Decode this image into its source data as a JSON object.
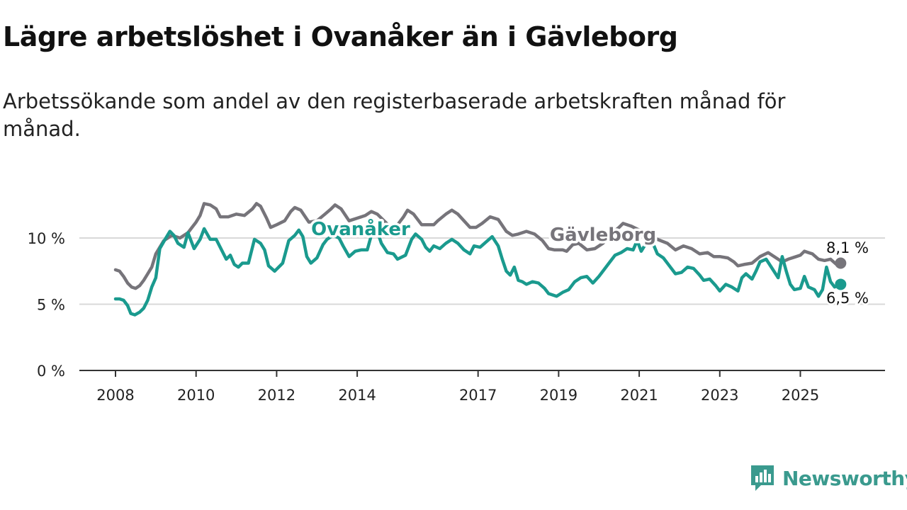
{
  "header": {
    "title": "Lägre arbetslöshet i Ovanåker än i Gävleborg",
    "subtitle": "Arbetssökande som andel av den registerbaserade arbetskraften månad för månad."
  },
  "brand": {
    "name": "Newsworthy",
    "icon": "newsworthy-logo-icon",
    "color": "#3a9a8e"
  },
  "chart_data": {
    "type": "line",
    "title": "Lägre arbetslöshet i Ovanåker än i Gävleborg",
    "xlabel": "",
    "ylabel": "",
    "xlim": [
      2008.0,
      2026.17
    ],
    "ylim": [
      0,
      12.5
    ],
    "grid": true,
    "x_ticks": [
      {
        "value": 2008,
        "label": "2008"
      },
      {
        "value": 2010,
        "label": "2010"
      },
      {
        "value": 2012,
        "label": "2012"
      },
      {
        "value": 2014,
        "label": "2014"
      },
      {
        "value": 2017,
        "label": "2017"
      },
      {
        "value": 2019,
        "label": "2019"
      },
      {
        "value": 2021,
        "label": "2021"
      },
      {
        "value": 2023,
        "label": "2023"
      },
      {
        "value": 2025,
        "label": "2025"
      }
    ],
    "y_ticks": [
      {
        "value": 0,
        "label": "0 %"
      },
      {
        "value": 5,
        "label": "5 %"
      },
      {
        "value": 10,
        "label": "10 %"
      }
    ],
    "series": [
      {
        "name": "Gävleborg",
        "color": "#76747a",
        "end_label": "8,1 %",
        "points": [
          [
            2008.0,
            7.6
          ],
          [
            2008.1,
            7.5
          ],
          [
            2008.2,
            7.1
          ],
          [
            2008.3,
            6.6
          ],
          [
            2008.4,
            6.3
          ],
          [
            2008.5,
            6.2
          ],
          [
            2008.6,
            6.4
          ],
          [
            2008.7,
            6.8
          ],
          [
            2008.8,
            7.3
          ],
          [
            2008.9,
            7.8
          ],
          [
            2009.0,
            8.8
          ],
          [
            2009.2,
            9.8
          ],
          [
            2009.4,
            10.2
          ],
          [
            2009.6,
            10.0
          ],
          [
            2009.8,
            10.4
          ],
          [
            2009.9,
            10.8
          ],
          [
            2010.0,
            11.2
          ],
          [
            2010.1,
            11.7
          ],
          [
            2010.2,
            12.6
          ],
          [
            2010.35,
            12.5
          ],
          [
            2010.5,
            12.2
          ],
          [
            2010.6,
            11.6
          ],
          [
            2010.8,
            11.6
          ],
          [
            2011.0,
            11.8
          ],
          [
            2011.2,
            11.7
          ],
          [
            2011.4,
            12.2
          ],
          [
            2011.5,
            12.6
          ],
          [
            2011.6,
            12.4
          ],
          [
            2011.75,
            11.5
          ],
          [
            2011.85,
            10.8
          ],
          [
            2012.0,
            11.0
          ],
          [
            2012.2,
            11.3
          ],
          [
            2012.35,
            12.0
          ],
          [
            2012.45,
            12.3
          ],
          [
            2012.6,
            12.1
          ],
          [
            2012.8,
            11.2
          ],
          [
            2013.0,
            11.3
          ],
          [
            2013.2,
            11.8
          ],
          [
            2013.35,
            12.2
          ],
          [
            2013.45,
            12.5
          ],
          [
            2013.6,
            12.2
          ],
          [
            2013.8,
            11.3
          ],
          [
            2014.0,
            11.5
          ],
          [
            2014.2,
            11.7
          ],
          [
            2014.35,
            12.0
          ],
          [
            2014.5,
            11.8
          ],
          [
            2014.8,
            10.9
          ],
          [
            2015.0,
            11.0
          ],
          [
            2015.15,
            11.6
          ],
          [
            2015.25,
            12.1
          ],
          [
            2015.4,
            11.8
          ],
          [
            2015.6,
            11.0
          ],
          [
            2015.9,
            11.0
          ],
          [
            2016.0,
            11.3
          ],
          [
            2016.2,
            11.8
          ],
          [
            2016.35,
            12.1
          ],
          [
            2016.5,
            11.8
          ],
          [
            2016.8,
            10.8
          ],
          [
            2016.95,
            10.8
          ],
          [
            2017.1,
            11.1
          ],
          [
            2017.3,
            11.6
          ],
          [
            2017.5,
            11.4
          ],
          [
            2017.7,
            10.5
          ],
          [
            2017.85,
            10.2
          ],
          [
            2018.0,
            10.3
          ],
          [
            2018.2,
            10.5
          ],
          [
            2018.4,
            10.3
          ],
          [
            2018.6,
            9.8
          ],
          [
            2018.75,
            9.2
          ],
          [
            2018.9,
            9.1
          ],
          [
            2019.1,
            9.1
          ],
          [
            2019.2,
            9.0
          ],
          [
            2019.35,
            9.5
          ],
          [
            2019.5,
            9.6
          ],
          [
            2019.7,
            9.1
          ],
          [
            2019.9,
            9.2
          ],
          [
            2020.1,
            9.6
          ],
          [
            2020.3,
            10.3
          ],
          [
            2020.5,
            10.8
          ],
          [
            2020.6,
            11.1
          ],
          [
            2020.8,
            10.9
          ],
          [
            2021.0,
            10.6
          ],
          [
            2021.2,
            10.3
          ],
          [
            2021.45,
            9.9
          ],
          [
            2021.7,
            9.6
          ],
          [
            2021.9,
            9.1
          ],
          [
            2022.1,
            9.4
          ],
          [
            2022.3,
            9.2
          ],
          [
            2022.5,
            8.8
          ],
          [
            2022.7,
            8.9
          ],
          [
            2022.85,
            8.6
          ],
          [
            2023.0,
            8.6
          ],
          [
            2023.2,
            8.5
          ],
          [
            2023.35,
            8.2
          ],
          [
            2023.45,
            7.9
          ],
          [
            2023.6,
            8.0
          ],
          [
            2023.8,
            8.1
          ],
          [
            2024.0,
            8.6
          ],
          [
            2024.2,
            8.9
          ],
          [
            2024.4,
            8.5
          ],
          [
            2024.55,
            8.2
          ],
          [
            2024.7,
            8.4
          ],
          [
            2024.9,
            8.6
          ],
          [
            2025.0,
            8.7
          ],
          [
            2025.1,
            9.0
          ],
          [
            2025.3,
            8.8
          ],
          [
            2025.45,
            8.4
          ],
          [
            2025.6,
            8.3
          ],
          [
            2025.75,
            8.4
          ],
          [
            2025.9,
            8.0
          ],
          [
            2026.0,
            8.1
          ]
        ]
      },
      {
        "name": "Ovanåker",
        "color": "#1a9a8e",
        "end_label": "6,5 %",
        "points": [
          [
            2008.0,
            5.4
          ],
          [
            2008.1,
            5.4
          ],
          [
            2008.2,
            5.3
          ],
          [
            2008.3,
            4.9
          ],
          [
            2008.38,
            4.3
          ],
          [
            2008.48,
            4.2
          ],
          [
            2008.6,
            4.4
          ],
          [
            2008.7,
            4.7
          ],
          [
            2008.8,
            5.3
          ],
          [
            2008.9,
            6.3
          ],
          [
            2009.0,
            7.0
          ],
          [
            2009.1,
            9.2
          ],
          [
            2009.25,
            10.0
          ],
          [
            2009.35,
            10.5
          ],
          [
            2009.45,
            10.2
          ],
          [
            2009.55,
            9.6
          ],
          [
            2009.7,
            9.3
          ],
          [
            2009.8,
            10.4
          ],
          [
            2009.95,
            9.2
          ],
          [
            2010.1,
            9.9
          ],
          [
            2010.2,
            10.7
          ],
          [
            2010.35,
            9.9
          ],
          [
            2010.5,
            9.9
          ],
          [
            2010.6,
            9.3
          ],
          [
            2010.75,
            8.4
          ],
          [
            2010.85,
            8.7
          ],
          [
            2010.95,
            8.0
          ],
          [
            2011.05,
            7.8
          ],
          [
            2011.15,
            8.1
          ],
          [
            2011.3,
            8.1
          ],
          [
            2011.45,
            9.9
          ],
          [
            2011.6,
            9.6
          ],
          [
            2011.7,
            9.1
          ],
          [
            2011.8,
            7.9
          ],
          [
            2011.95,
            7.5
          ],
          [
            2012.05,
            7.8
          ],
          [
            2012.15,
            8.1
          ],
          [
            2012.3,
            9.8
          ],
          [
            2012.45,
            10.2
          ],
          [
            2012.55,
            10.6
          ],
          [
            2012.65,
            10.1
          ],
          [
            2012.75,
            8.6
          ],
          [
            2012.85,
            8.1
          ],
          [
            2013.0,
            8.5
          ],
          [
            2013.15,
            9.5
          ],
          [
            2013.25,
            9.9
          ],
          [
            2013.4,
            10.2
          ],
          [
            2013.55,
            10.0
          ],
          [
            2013.65,
            9.4
          ],
          [
            2013.8,
            8.6
          ],
          [
            2013.95,
            9.0
          ],
          [
            2014.1,
            9.1
          ],
          [
            2014.25,
            9.1
          ],
          [
            2014.35,
            10.2
          ],
          [
            2014.5,
            10.5
          ],
          [
            2014.6,
            9.6
          ],
          [
            2014.75,
            8.9
          ],
          [
            2014.9,
            8.8
          ],
          [
            2015.0,
            8.4
          ],
          [
            2015.2,
            8.7
          ],
          [
            2015.35,
            9.9
          ],
          [
            2015.45,
            10.3
          ],
          [
            2015.6,
            9.9
          ],
          [
            2015.7,
            9.3
          ],
          [
            2015.8,
            9.0
          ],
          [
            2015.9,
            9.4
          ],
          [
            2016.05,
            9.2
          ],
          [
            2016.2,
            9.6
          ],
          [
            2016.35,
            9.9
          ],
          [
            2016.5,
            9.6
          ],
          [
            2016.65,
            9.1
          ],
          [
            2016.8,
            8.8
          ],
          [
            2016.9,
            9.4
          ],
          [
            2017.05,
            9.3
          ],
          [
            2017.2,
            9.7
          ],
          [
            2017.35,
            10.1
          ],
          [
            2017.5,
            9.4
          ],
          [
            2017.6,
            8.4
          ],
          [
            2017.7,
            7.5
          ],
          [
            2017.8,
            7.2
          ],
          [
            2017.9,
            7.8
          ],
          [
            2018.0,
            6.8
          ],
          [
            2018.1,
            6.7
          ],
          [
            2018.2,
            6.5
          ],
          [
            2018.35,
            6.7
          ],
          [
            2018.5,
            6.6
          ],
          [
            2018.65,
            6.2
          ],
          [
            2018.75,
            5.8
          ],
          [
            2018.85,
            5.7
          ],
          [
            2018.95,
            5.6
          ],
          [
            2019.1,
            5.9
          ],
          [
            2019.25,
            6.1
          ],
          [
            2019.4,
            6.7
          ],
          [
            2019.55,
            7.0
          ],
          [
            2019.7,
            7.1
          ],
          [
            2019.85,
            6.6
          ],
          [
            2020.0,
            7.1
          ],
          [
            2020.1,
            7.5
          ],
          [
            2020.25,
            8.1
          ],
          [
            2020.4,
            8.7
          ],
          [
            2020.55,
            8.9
          ],
          [
            2020.7,
            9.2
          ],
          [
            2020.85,
            9.1
          ],
          [
            2020.95,
            9.8
          ],
          [
            2021.05,
            9.0
          ],
          [
            2021.15,
            9.5
          ],
          [
            2021.3,
            9.9
          ],
          [
            2021.45,
            8.8
          ],
          [
            2021.6,
            8.5
          ],
          [
            2021.75,
            7.9
          ],
          [
            2021.9,
            7.3
          ],
          [
            2022.05,
            7.4
          ],
          [
            2022.2,
            7.8
          ],
          [
            2022.35,
            7.7
          ],
          [
            2022.5,
            7.2
          ],
          [
            2022.6,
            6.8
          ],
          [
            2022.75,
            6.9
          ],
          [
            2022.9,
            6.4
          ],
          [
            2023.0,
            6.0
          ],
          [
            2023.15,
            6.5
          ],
          [
            2023.3,
            6.3
          ],
          [
            2023.45,
            6.0
          ],
          [
            2023.55,
            7.0
          ],
          [
            2023.65,
            7.3
          ],
          [
            2023.8,
            6.9
          ],
          [
            2023.9,
            7.5
          ],
          [
            2024.0,
            8.2
          ],
          [
            2024.15,
            8.4
          ],
          [
            2024.3,
            7.7
          ],
          [
            2024.45,
            7.0
          ],
          [
            2024.55,
            8.6
          ],
          [
            2024.65,
            7.5
          ],
          [
            2024.75,
            6.5
          ],
          [
            2024.85,
            6.1
          ],
          [
            2025.0,
            6.2
          ],
          [
            2025.1,
            7.1
          ],
          [
            2025.2,
            6.3
          ],
          [
            2025.35,
            6.1
          ],
          [
            2025.45,
            5.6
          ],
          [
            2025.55,
            6.1
          ],
          [
            2025.65,
            7.8
          ],
          [
            2025.75,
            6.7
          ],
          [
            2025.85,
            6.3
          ],
          [
            2026.0,
            6.5
          ]
        ]
      }
    ]
  }
}
